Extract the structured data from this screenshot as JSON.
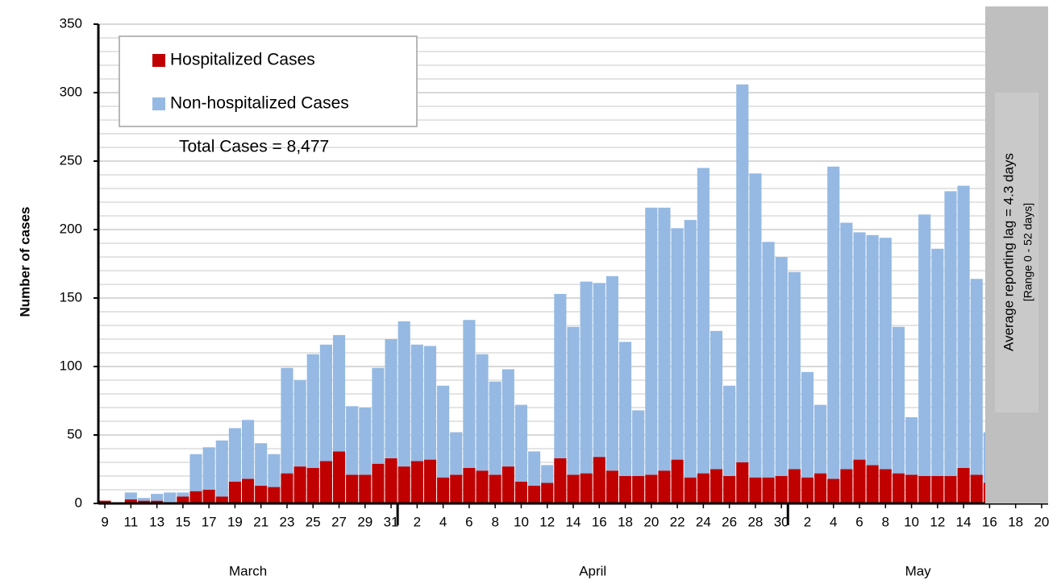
{
  "chart_data": {
    "type": "stacked-bar",
    "y_label": "Number of cases",
    "annotation": "Total Cases = 8,477",
    "side_note": "Average reporting lag  = 4.3 days",
    "side_note_sub": "[Range 0 - 52 days]",
    "months": [
      "March",
      "April",
      "May"
    ],
    "categories": [
      "9",
      null,
      "11",
      null,
      "13",
      null,
      "15",
      null,
      "17",
      null,
      "19",
      null,
      "21",
      null,
      "23",
      null,
      "25",
      null,
      "27",
      null,
      "29",
      null,
      "31",
      null,
      "2",
      null,
      "4",
      null,
      "6",
      null,
      "8",
      null,
      "10",
      null,
      "12",
      null,
      "14",
      null,
      "16",
      null,
      "18",
      null,
      "20",
      null,
      "22",
      null,
      "24",
      null,
      "26",
      null,
      "28",
      null,
      "30",
      null,
      "2",
      null,
      "4",
      null,
      "6",
      null,
      "8",
      null,
      "10",
      null,
      "12",
      null,
      "14",
      null,
      "16",
      null,
      "18",
      null,
      "20"
    ],
    "series": [
      {
        "name": "Hospitalized Cases",
        "color": "#c00000",
        "values": [
          2,
          0,
          3,
          2,
          2,
          1,
          5,
          9,
          10,
          5,
          16,
          18,
          13,
          12,
          22,
          27,
          26,
          31,
          38,
          21,
          21,
          29,
          33,
          27,
          31,
          32,
          19,
          21,
          26,
          24,
          21,
          27,
          16,
          13,
          15,
          33,
          21,
          22,
          34,
          24,
          20,
          20,
          21,
          24,
          32,
          19,
          22,
          25,
          20,
          30,
          19,
          19,
          20,
          25,
          19,
          22,
          18,
          25,
          32,
          28,
          25,
          22,
          21,
          20,
          20,
          20,
          26,
          21,
          15,
          null,
          null,
          null,
          null
        ]
      },
      {
        "name": "Non-hospitalized Cases",
        "color": "#95b9e2",
        "values": [
          0,
          0,
          5,
          2,
          5,
          7,
          3,
          27,
          31,
          41,
          39,
          43,
          31,
          24,
          77,
          63,
          83,
          85,
          85,
          50,
          49,
          70,
          87,
          106,
          85,
          83,
          67,
          31,
          108,
          85,
          68,
          71,
          56,
          25,
          13,
          120,
          108,
          140,
          127,
          142,
          98,
          48,
          195,
          192,
          169,
          188,
          223,
          101,
          66,
          276,
          222,
          172,
          160,
          144,
          77,
          50,
          228,
          180,
          166,
          168,
          169,
          107,
          42,
          191,
          166,
          208,
          206,
          143,
          37,
          null,
          null,
          null,
          null
        ]
      }
    ],
    "ylim": [
      0,
      350
    ],
    "yticks": [
      0,
      50,
      100,
      150,
      200,
      250,
      300,
      350
    ],
    "minor_grid_step": 10,
    "grid": true
  }
}
